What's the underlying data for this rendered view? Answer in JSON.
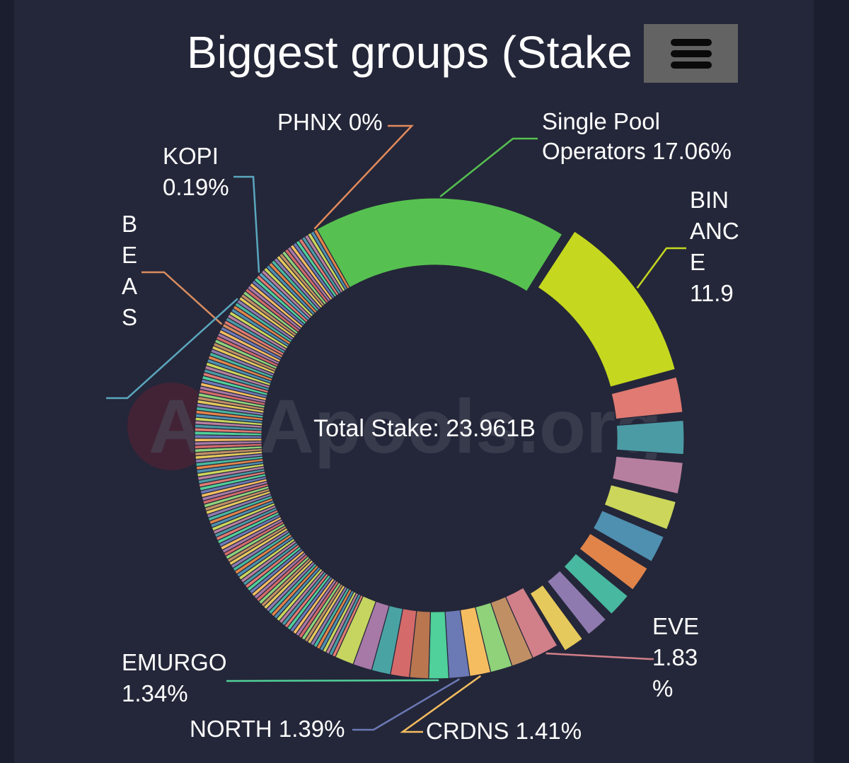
{
  "chart_data": {
    "type": "pie",
    "title": "Biggest groups (Stake",
    "center_label": "Total Stake: 23.961B",
    "total_stake": "23.961B",
    "hole": "donut",
    "labeled_slices": [
      {
        "label_lines": [
          "Single Pool",
          "Operators 17.06%"
        ],
        "name": "Single Pool Operators",
        "value": 17.06,
        "color": "#56c150"
      },
      {
        "label_lines": [
          "BIN",
          "ANC",
          "E",
          "11.9"
        ],
        "name": "BINANCE",
        "value": 11.9,
        "color": "#c5d81f"
      },
      {
        "label_lines": [
          "EVE",
          "1.83",
          "%"
        ],
        "name": "EVE",
        "value": 1.83,
        "color": "#d17f89"
      },
      {
        "label_lines": [
          "CRDNS 1.41%"
        ],
        "name": "CRDNS",
        "value": 1.41,
        "color": "#f6bd60"
      },
      {
        "label_lines": [
          "NORTH 1.39%"
        ],
        "name": "NORTH",
        "value": 1.39,
        "color": "#6b79b5"
      },
      {
        "label_lines": [
          "EMURGO",
          "1.34%"
        ],
        "name": "EMURGO",
        "value": 1.34,
        "color": "#50d09a"
      },
      {
        "label_lines": [
          "B",
          "E",
          "A",
          "S"
        ],
        "name": "BEAS",
        "value": null,
        "color": "#d98c5f"
      },
      {
        "label_lines": [
          "KOPI",
          "0.19%"
        ],
        "name": "KOPI",
        "value": 0.19,
        "color": "#5aa7bf"
      },
      {
        "label_lines": [
          "PHNX 0%"
        ],
        "name": "PHNX",
        "value": 0,
        "color": "#e38a5c"
      }
    ],
    "unlabeled_slice_colors": [
      "#e07a72",
      "#4b9ba4",
      "#b77f9f",
      "#cbd65b",
      "#4f8fb0",
      "#e1844a",
      "#48b8a0",
      "#8e7aae",
      "#e6c95c",
      "#c08f64",
      "#8fd27a",
      "#b9764f",
      "#d46a6a",
      "#4aa3a3",
      "#a779a6",
      "#c6d460",
      "#58595b"
    ],
    "legend": "none",
    "grid": false
  },
  "watermark": "ADApools.org"
}
